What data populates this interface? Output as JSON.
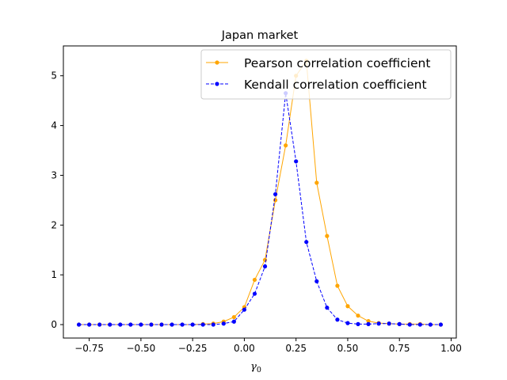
{
  "chart_data": {
    "type": "line",
    "title": "Japan market",
    "xlabel": "γ",
    "xlabel_subscript": "0",
    "ylabel": "",
    "xlim": [
      -0.875,
      1.025
    ],
    "ylim": [
      -0.27,
      5.6
    ],
    "xticks": [
      -0.75,
      -0.5,
      -0.25,
      0.0,
      0.25,
      0.5,
      0.75,
      1.0
    ],
    "xtick_labels": [
      "−0.75",
      "−0.50",
      "−0.25",
      "0.00",
      "0.25",
      "0.50",
      "0.75",
      "1.00"
    ],
    "yticks": [
      0,
      1,
      2,
      3,
      4,
      5
    ],
    "ytick_labels": [
      "0",
      "1",
      "2",
      "3",
      "4",
      "5"
    ],
    "grid": false,
    "legend_position": "top-right",
    "x": [
      -0.8,
      -0.75,
      -0.7,
      -0.65,
      -0.6,
      -0.55,
      -0.5,
      -0.45,
      -0.4,
      -0.35,
      -0.3,
      -0.25,
      -0.2,
      -0.15,
      -0.1,
      -0.05,
      0.0,
      0.05,
      0.1,
      0.15,
      0.2,
      0.25,
      0.3,
      0.35,
      0.4,
      0.45,
      0.5,
      0.55,
      0.6,
      0.65,
      0.7,
      0.75,
      0.8,
      0.85,
      0.9,
      0.95
    ],
    "series": [
      {
        "name": "Pearson correlation coefficient",
        "color": "#ffa500",
        "line_style": "solid",
        "values": [
          0,
          0,
          0,
          0,
          0,
          0,
          0,
          0,
          0,
          0,
          0,
          0,
          0.01,
          0.02,
          0.06,
          0.15,
          0.35,
          0.9,
          1.3,
          2.5,
          3.6,
          5.0,
          5.3,
          2.85,
          1.78,
          0.78,
          0.37,
          0.18,
          0.07,
          0.03,
          0.02,
          0.01,
          0.01,
          0.01,
          0,
          0
        ]
      },
      {
        "name": "Kendall correlation coefficient",
        "color": "#0000ff",
        "line_style": "dashed",
        "values": [
          0,
          0,
          0,
          0,
          0,
          0,
          0,
          0,
          0,
          0,
          0,
          0,
          0,
          0,
          0.02,
          0.06,
          0.3,
          0.62,
          1.17,
          2.62,
          4.65,
          3.28,
          1.66,
          0.87,
          0.34,
          0.1,
          0.03,
          0.01,
          0.01,
          0.02,
          0.02,
          0.01,
          0,
          0,
          0,
          0
        ]
      }
    ]
  }
}
